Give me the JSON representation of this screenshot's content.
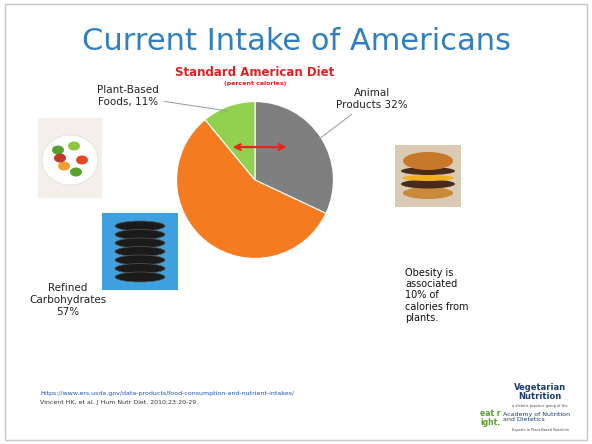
{
  "slide": {
    "title": "Current Intake of Americans",
    "note": "Obesity is associated 10% of calories from plants.",
    "sources": [
      "https://www.ers.usda.gov/data-products/food-consumption-and-nutrient-intakes/",
      "Vincent HK, et al. J Hum Nutr Diet. 2010;23:20-29."
    ],
    "logo": {
      "name": "Vegetarian Nutrition",
      "tagline": "a dietetic practice group of the",
      "organization": "Academy of Nutrition and Dietetics",
      "brand": "eat right.",
      "motto": "Experts in Plant-Based Nutrition"
    }
  },
  "chart_data": {
    "type": "pie",
    "title": "Standard American Diet",
    "subtitle": "(percent calories)",
    "categories": [
      "Animal Products 32%",
      "Refined Carbohydrates 57%",
      "Plant-Based Foods, 11%"
    ],
    "values": [
      32,
      57,
      11
    ],
    "colors": [
      "#7f7f7f",
      "#f47b20",
      "#92d050"
    ]
  }
}
